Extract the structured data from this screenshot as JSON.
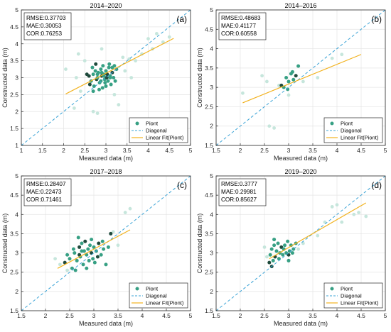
{
  "chart_data": [
    {
      "type": "scatter",
      "title": "2014–2020",
      "panel_label": "(a)",
      "xlabel": "Measured data (m)",
      "ylabel": "Constructed data (m)",
      "xlim": [
        1,
        5
      ],
      "ylim": [
        1,
        5
      ],
      "xticks": [
        1,
        1.5,
        2,
        2.5,
        3,
        3.5,
        4,
        4.5,
        5
      ],
      "yticks": [
        1,
        1.5,
        2,
        2.5,
        3,
        3.5,
        4,
        4.5,
        5
      ],
      "xtick_labels": [
        "1",
        "1.5",
        "2",
        "2.5",
        "3",
        "3.5",
        "4",
        "4.5",
        "5"
      ],
      "ytick_labels": [
        "1",
        "1.5",
        "2",
        "2.5",
        "3",
        "3.5",
        "4",
        "4.5",
        "5"
      ],
      "stats": [
        "RMSE:0.37703",
        "MAE:0.30053",
        "COR:0.76253"
      ],
      "legend": {
        "placement": "bottom-right",
        "entries": [
          "Piont",
          "Diagonal",
          "Linear Fit(Piont)"
        ]
      },
      "fit_line": {
        "x": [
          2.05,
          4.6
        ],
        "y": [
          2.52,
          4.16
        ]
      },
      "grid": true,
      "points": [
        [
          2.6,
          3.05
        ],
        [
          2.65,
          2.9
        ],
        [
          2.7,
          3.1
        ],
        [
          2.72,
          2.75
        ],
        [
          2.75,
          3.2
        ],
        [
          2.78,
          2.95
        ],
        [
          2.8,
          3.0
        ],
        [
          2.82,
          3.15
        ],
        [
          2.85,
          2.85
        ],
        [
          2.88,
          3.25
        ],
        [
          2.9,
          3.05
        ],
        [
          2.92,
          2.7
        ],
        [
          2.95,
          3.1
        ],
        [
          2.97,
          2.95
        ],
        [
          3.0,
          3.2
        ],
        [
          3.02,
          3.0
        ],
        [
          3.05,
          2.9
        ],
        [
          3.07,
          3.3
        ],
        [
          3.1,
          3.05
        ],
        [
          3.12,
          2.8
        ],
        [
          3.15,
          3.15
        ],
        [
          3.18,
          3.0
        ],
        [
          3.2,
          3.35
        ],
        [
          3.22,
          2.9
        ],
        [
          2.68,
          3.3
        ],
        [
          2.76,
          3.4
        ],
        [
          2.84,
          2.65
        ],
        [
          2.93,
          3.35
        ],
        [
          3.0,
          2.75
        ],
        [
          3.08,
          3.4
        ],
        [
          2.62,
          2.8
        ],
        [
          2.7,
          2.6
        ],
        [
          3.25,
          3.25
        ],
        [
          2.88,
          2.9
        ],
        [
          2.95,
          3.05
        ],
        [
          3.03,
          3.1
        ],
        [
          2.8,
          3.1
        ],
        [
          3.1,
          3.0
        ],
        [
          2.9,
          3.15
        ],
        [
          2.98,
          2.85
        ],
        [
          2.55,
          3.1
        ],
        [
          3.15,
          3.3
        ]
      ],
      "faint_points": [
        [
          2.05,
          3.25
        ],
        [
          2.25,
          2.1
        ],
        [
          2.4,
          2.6
        ],
        [
          2.5,
          3.5
        ],
        [
          2.7,
          2.0
        ],
        [
          2.8,
          1.95
        ],
        [
          3.2,
          2.5
        ],
        [
          3.4,
          3.6
        ],
        [
          3.55,
          3.55
        ],
        [
          3.7,
          3.5
        ],
        [
          3.85,
          3.7
        ],
        [
          4.0,
          4.15
        ],
        [
          4.1,
          3.85
        ],
        [
          4.2,
          4.3
        ],
        [
          4.35,
          4.05
        ],
        [
          4.5,
          4.2
        ],
        [
          3.45,
          3.2
        ],
        [
          2.3,
          3.0
        ],
        [
          2.35,
          3.7
        ],
        [
          3.6,
          3.0
        ],
        [
          2.9,
          3.85
        ],
        [
          3.3,
          2.2
        ]
      ]
    },
    {
      "type": "scatter",
      "title": "2014–2016",
      "panel_label": "(b)",
      "xlabel": "Measured data (m)",
      "ylabel": "Constructed data (m)",
      "xlim": [
        1.5,
        5
      ],
      "ylim": [
        1.5,
        5
      ],
      "xticks": [
        1.5,
        2,
        2.5,
        3,
        3.5,
        4,
        4.5,
        5
      ],
      "yticks": [
        1.5,
        2,
        2.5,
        3,
        3.5,
        4,
        4.5,
        5
      ],
      "xtick_labels": [
        "1.5",
        "2",
        "2.5",
        "3",
        "3.5",
        "4",
        "4.5",
        "5"
      ],
      "ytick_labels": [
        "1.5",
        "2",
        "2.5",
        "3",
        "3.5",
        "4",
        "4.5",
        "5"
      ],
      "stats": [
        "RMSE:0.48683",
        "MAE:0.41177",
        "COR:0.60558"
      ],
      "legend": {
        "placement": "bottom-right",
        "entries": [
          "Piont",
          "Diagonal",
          "Linear Fit(Piont)"
        ]
      },
      "fit_line": {
        "x": [
          2.05,
          4.5
        ],
        "y": [
          2.6,
          3.85
        ]
      },
      "grid": true,
      "points": [
        [
          2.85,
          3.05
        ],
        [
          2.95,
          3.25
        ],
        [
          3.0,
          3.15
        ],
        [
          3.05,
          3.35
        ],
        [
          3.1,
          3.2
        ],
        [
          3.15,
          3.3
        ],
        [
          3.2,
          3.55
        ],
        [
          2.9,
          3.0
        ],
        [
          3.08,
          3.4
        ],
        [
          2.98,
          2.95
        ]
      ],
      "faint_points": [
        [
          2.05,
          2.85
        ],
        [
          2.45,
          3.3
        ],
        [
          2.55,
          3.15
        ],
        [
          2.6,
          2.0
        ],
        [
          2.7,
          1.95
        ],
        [
          3.0,
          2.8
        ],
        [
          3.6,
          3.25
        ],
        [
          3.9,
          3.75
        ],
        [
          4.1,
          3.85
        ],
        [
          2.8,
          3.05
        ],
        [
          3.3,
          3.15
        ]
      ]
    },
    {
      "type": "scatter",
      "title": "2017–2018",
      "panel_label": "(c)",
      "xlabel": "Measured data (m)",
      "ylabel": "Constructed data (m)",
      "xlim": [
        1.5,
        5
      ],
      "ylim": [
        1.5,
        5
      ],
      "xticks": [
        1.5,
        2,
        2.5,
        3,
        3.5,
        4,
        4.5,
        5
      ],
      "yticks": [
        1.5,
        2,
        2.5,
        3,
        3.5,
        4,
        4.5,
        5
      ],
      "xtick_labels": [
        "1.5",
        "2",
        "2.5",
        "3",
        "3.5",
        "4",
        "4.5",
        "5"
      ],
      "ytick_labels": [
        "1.5",
        "2",
        "2.5",
        "3",
        "3.5",
        "4",
        "4.5",
        "5"
      ],
      "stats": [
        "RMSE:0.28407",
        "MAE:0.22473",
        "COR:0.71461"
      ],
      "legend": {
        "placement": "bottom-right",
        "entries": [
          "Piont",
          "Diagonal",
          "Linear Fit(Piont)"
        ]
      },
      "fit_line": {
        "x": [
          2.25,
          3.75
        ],
        "y": [
          2.6,
          3.6
        ]
      },
      "grid": true,
      "points": [
        [
          2.4,
          2.75
        ],
        [
          2.5,
          2.85
        ],
        [
          2.55,
          2.6
        ],
        [
          2.6,
          3.0
        ],
        [
          2.65,
          2.8
        ],
        [
          2.7,
          3.15
        ],
        [
          2.72,
          2.9
        ],
        [
          2.75,
          3.25
        ],
        [
          2.78,
          2.7
        ],
        [
          2.8,
          3.05
        ],
        [
          2.82,
          3.3
        ],
        [
          2.85,
          2.95
        ],
        [
          2.88,
          3.1
        ],
        [
          2.9,
          2.8
        ],
        [
          2.92,
          3.2
        ],
        [
          2.95,
          3.0
        ],
        [
          2.98,
          2.85
        ],
        [
          3.0,
          3.15
        ],
        [
          3.02,
          2.75
        ],
        [
          3.05,
          3.05
        ],
        [
          3.1,
          3.25
        ],
        [
          3.15,
          2.95
        ],
        [
          3.2,
          3.1
        ],
        [
          3.25,
          2.7
        ],
        [
          3.3,
          3.15
        ],
        [
          3.35,
          3.5
        ],
        [
          2.68,
          3.4
        ],
        [
          2.58,
          3.1
        ],
        [
          2.62,
          2.55
        ],
        [
          2.95,
          3.35
        ],
        [
          3.08,
          2.9
        ],
        [
          2.45,
          2.95
        ],
        [
          2.75,
          3.05
        ],
        [
          2.85,
          2.6
        ],
        [
          3.18,
          3.3
        ],
        [
          2.7,
          2.95
        ]
      ],
      "faint_points": [
        [
          2.3,
          2.7
        ],
        [
          2.45,
          2.55
        ],
        [
          3.4,
          3.55
        ],
        [
          3.65,
          4.05
        ],
        [
          3.75,
          4.15
        ],
        [
          3.5,
          3.2
        ],
        [
          2.2,
          2.85
        ]
      ]
    },
    {
      "type": "scatter",
      "title": "2019–2020",
      "panel_label": "(d)",
      "xlabel": "Measured data (m)",
      "ylabel": "Constructed data (m)",
      "xlim": [
        1.5,
        5
      ],
      "ylim": [
        1.5,
        5
      ],
      "xticks": [
        1.5,
        2,
        2.5,
        3,
        3.5,
        4,
        4.5,
        5
      ],
      "yticks": [
        1.5,
        2,
        2.5,
        3,
        3.5,
        4,
        4.5,
        5
      ],
      "xtick_labels": [
        "1.5",
        "2",
        "2.5",
        "3",
        "3.5",
        "4",
        "4.5",
        "5"
      ],
      "ytick_labels": [
        "1.5",
        "2",
        "2.5",
        "3",
        "3.5",
        "4",
        "4.5",
        "5"
      ],
      "stats": [
        "RMSE:0.3777",
        "MAE:0.29981",
        "COR:0.85627"
      ],
      "legend": {
        "placement": "bottom-right",
        "entries": [
          "Piont",
          "Diagonal",
          "Linear Fit(Piont)"
        ]
      },
      "fit_line": {
        "x": [
          2.6,
          4.6
        ],
        "y": [
          2.85,
          4.3
        ]
      },
      "grid": true,
      "points": [
        [
          2.6,
          2.75
        ],
        [
          2.62,
          2.95
        ],
        [
          2.65,
          3.1
        ],
        [
          2.68,
          2.8
        ],
        [
          2.7,
          3.2
        ],
        [
          2.72,
          2.9
        ],
        [
          2.75,
          3.05
        ],
        [
          2.78,
          3.25
        ],
        [
          2.8,
          2.85
        ],
        [
          2.82,
          3.0
        ],
        [
          2.85,
          3.15
        ],
        [
          2.88,
          2.95
        ],
        [
          2.9,
          3.1
        ],
        [
          2.95,
          3.0
        ],
        [
          2.98,
          3.3
        ],
        [
          3.0,
          2.95
        ],
        [
          3.02,
          3.05
        ],
        [
          3.05,
          3.2
        ],
        [
          3.1,
          3.1
        ],
        [
          3.15,
          3.25
        ],
        [
          2.65,
          2.65
        ],
        [
          2.7,
          3.35
        ],
        [
          3.0,
          2.8
        ],
        [
          3.08,
          3.0
        ],
        [
          2.92,
          3.2
        ]
      ],
      "faint_points": [
        [
          2.55,
          2.9
        ],
        [
          3.2,
          3.1
        ],
        [
          3.6,
          3.45
        ],
        [
          3.9,
          4.2
        ],
        [
          4.0,
          4.25
        ],
        [
          4.1,
          3.8
        ],
        [
          4.35,
          4.0
        ],
        [
          4.45,
          4.05
        ],
        [
          4.6,
          3.95
        ],
        [
          3.3,
          3.25
        ],
        [
          3.75,
          3.8
        ],
        [
          2.5,
          3.15
        ]
      ]
    }
  ]
}
